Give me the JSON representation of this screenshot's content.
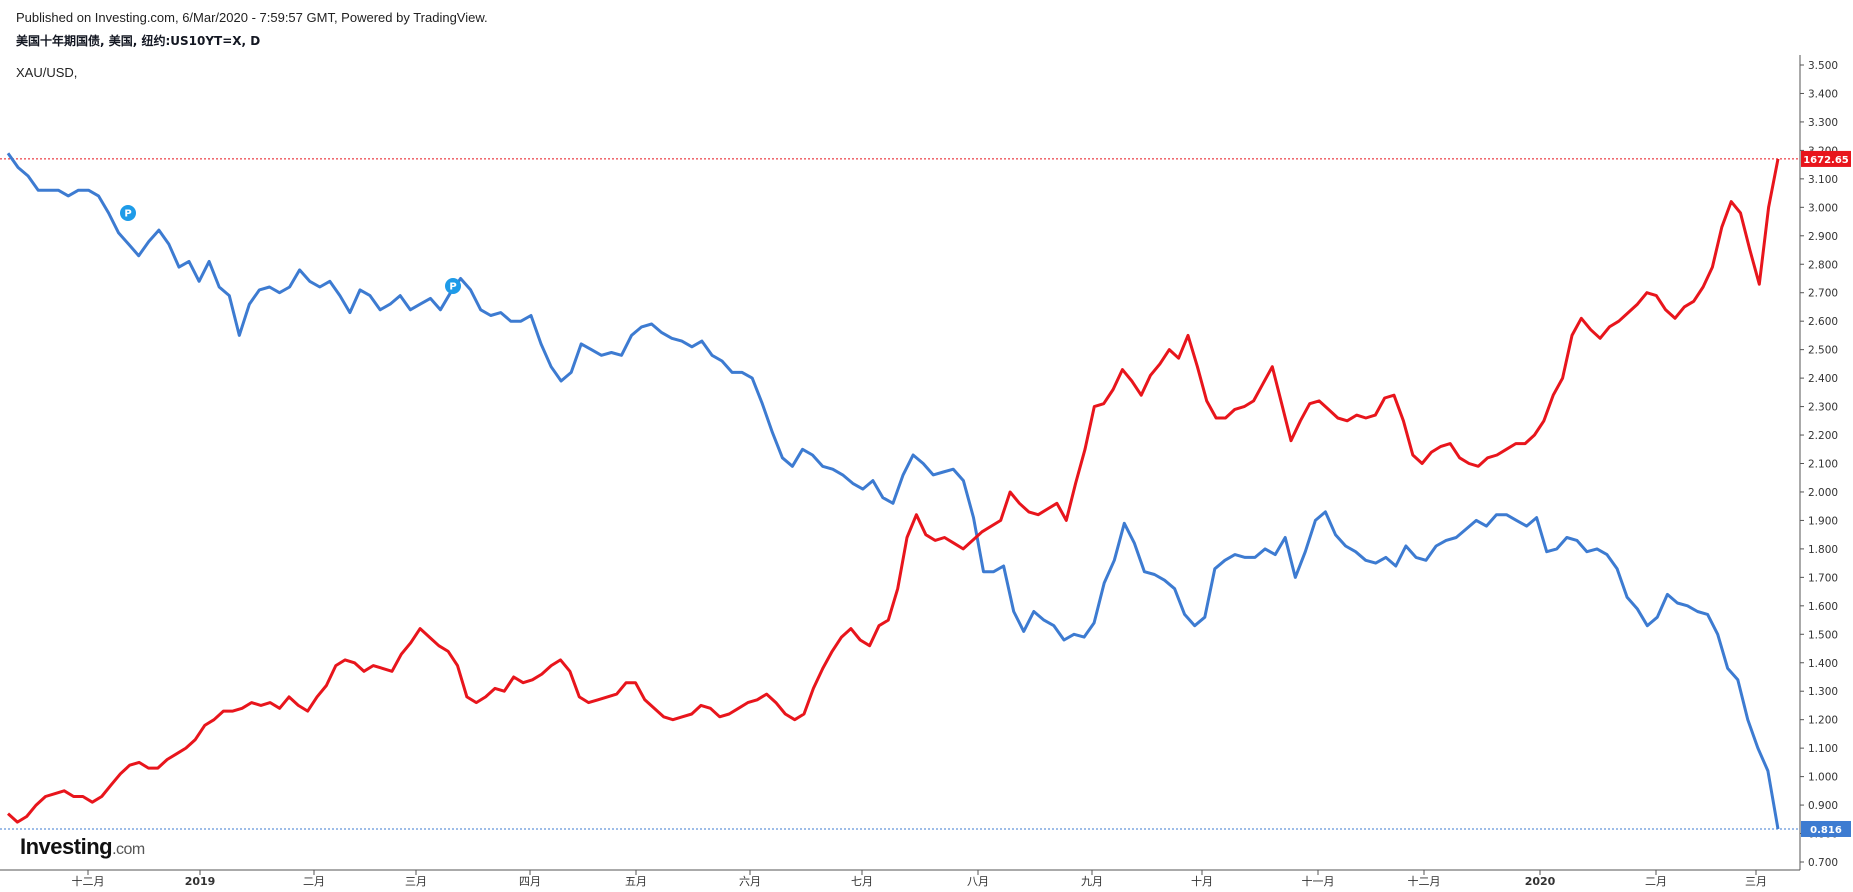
{
  "header": {
    "published": "Published on Investing.com, 6/Mar/2020 - 7:59:57 GMT, Powered by TradingView.",
    "symbol": "美国十年期国债, 美国, 纽约:US10YT=X, D",
    "overlay": "XAU/USD,"
  },
  "logo": {
    "main": "Investing",
    "suffix": ".com"
  },
  "colors": {
    "us10y": "#3d7bd1",
    "gold": "#e8151c",
    "axis": "#555555"
  },
  "chart_data": {
    "type": "line",
    "yaxis": {
      "ticks": [
        "3.500",
        "3.400",
        "3.300",
        "3.200",
        "3.100",
        "3.000",
        "2.900",
        "2.800",
        "2.700",
        "2.600",
        "2.500",
        "2.400",
        "2.300",
        "2.200",
        "2.100",
        "2.000",
        "1.900",
        "1.800",
        "1.700",
        "1.600",
        "1.500",
        "1.400",
        "1.300",
        "1.200",
        "1.100",
        "1.000",
        "0.900",
        "0.800",
        "0.700"
      ],
      "ylim": [
        0.7,
        3.5
      ]
    },
    "xaxis": {
      "ticks": [
        {
          "label": "十二月",
          "year": false
        },
        {
          "label": "2019",
          "year": true
        },
        {
          "label": "二月",
          "year": false
        },
        {
          "label": "三月",
          "year": false
        },
        {
          "label": "四月",
          "year": false
        },
        {
          "label": "五月",
          "year": false
        },
        {
          "label": "六月",
          "year": false
        },
        {
          "label": "七月",
          "year": false
        },
        {
          "label": "八月",
          "year": false
        },
        {
          "label": "九月",
          "year": false
        },
        {
          "label": "十月",
          "year": false
        },
        {
          "label": "十一月",
          "year": false
        },
        {
          "label": "十二月",
          "year": false
        },
        {
          "label": "2020",
          "year": true
        },
        {
          "label": "二月",
          "year": false
        },
        {
          "label": "三月",
          "year": false
        }
      ]
    },
    "price_labels": {
      "gold_last": "1672.65",
      "us10y_last": "0.816"
    },
    "annotation_marker": "P",
    "series": [
      {
        "key": "us10y",
        "values": [
          3.19,
          3.14,
          3.11,
          3.06,
          3.06,
          3.06,
          3.04,
          3.06,
          3.06,
          3.04,
          2.98,
          2.91,
          2.87,
          2.83,
          2.88,
          2.92,
          2.87,
          2.79,
          2.81,
          2.74,
          2.81,
          2.72,
          2.69,
          2.55,
          2.66,
          2.71,
          2.72,
          2.7,
          2.72,
          2.78,
          2.74,
          2.72,
          2.74,
          2.69,
          2.63,
          2.71,
          2.69,
          2.64,
          2.66,
          2.69,
          2.64,
          2.66,
          2.68,
          2.64,
          2.7,
          2.75,
          2.71,
          2.64,
          2.62,
          2.63,
          2.6,
          2.6,
          2.62,
          2.52,
          2.44,
          2.39,
          2.42,
          2.52,
          2.5,
          2.48,
          2.49,
          2.48,
          2.55,
          2.58,
          2.59,
          2.56,
          2.54,
          2.53,
          2.51,
          2.53,
          2.48,
          2.46,
          2.42,
          2.42,
          2.4,
          2.31,
          2.21,
          2.12,
          2.09,
          2.15,
          2.13,
          2.09,
          2.08,
          2.06,
          2.03,
          2.01,
          2.04,
          1.98,
          1.96,
          2.06,
          2.13,
          2.1,
          2.06,
          2.07,
          2.08,
          2.04,
          1.91,
          1.72,
          1.72,
          1.74,
          1.58,
          1.51,
          1.58,
          1.55,
          1.53,
          1.48,
          1.5,
          1.49,
          1.54,
          1.68,
          1.76,
          1.89,
          1.82,
          1.72,
          1.71,
          1.69,
          1.66,
          1.57,
          1.53,
          1.56,
          1.73,
          1.76,
          1.78,
          1.77,
          1.77,
          1.8,
          1.78,
          1.84,
          1.7,
          1.79,
          1.9,
          1.93,
          1.85,
          1.81,
          1.79,
          1.76,
          1.75,
          1.77,
          1.74,
          1.81,
          1.77,
          1.76,
          1.81,
          1.83,
          1.84,
          1.87,
          1.9,
          1.88,
          1.92,
          1.92,
          1.9,
          1.88,
          1.91,
          1.79,
          1.8,
          1.84,
          1.83,
          1.79,
          1.8,
          1.78,
          1.73,
          1.63,
          1.59,
          1.53,
          1.56,
          1.64,
          1.61,
          1.6,
          1.58,
          1.57,
          1.5,
          1.38,
          1.34,
          1.2,
          1.1,
          1.02,
          0.816
        ]
      },
      {
        "key": "gold",
        "values": [
          0.87,
          0.84,
          0.86,
          0.9,
          0.93,
          0.94,
          0.95,
          0.93,
          0.93,
          0.91,
          0.93,
          0.97,
          1.01,
          1.04,
          1.05,
          1.03,
          1.03,
          1.06,
          1.08,
          1.1,
          1.13,
          1.18,
          1.2,
          1.23,
          1.23,
          1.24,
          1.26,
          1.25,
          1.26,
          1.24,
          1.28,
          1.25,
          1.23,
          1.28,
          1.32,
          1.39,
          1.41,
          1.4,
          1.37,
          1.39,
          1.38,
          1.37,
          1.43,
          1.47,
          1.52,
          1.49,
          1.46,
          1.44,
          1.39,
          1.28,
          1.26,
          1.28,
          1.31,
          1.3,
          1.35,
          1.33,
          1.34,
          1.36,
          1.39,
          1.41,
          1.37,
          1.28,
          1.26,
          1.27,
          1.28,
          1.29,
          1.33,
          1.33,
          1.27,
          1.24,
          1.21,
          1.2,
          1.21,
          1.22,
          1.25,
          1.24,
          1.21,
          1.22,
          1.24,
          1.26,
          1.27,
          1.29,
          1.26,
          1.22,
          1.2,
          1.22,
          1.31,
          1.38,
          1.44,
          1.49,
          1.52,
          1.48,
          1.46,
          1.53,
          1.55,
          1.66,
          1.84,
          1.92,
          1.85,
          1.83,
          1.84,
          1.82,
          1.8,
          1.83,
          1.86,
          1.88,
          1.9,
          2.0,
          1.96,
          1.93,
          1.92,
          1.94,
          1.96,
          1.9,
          2.03,
          2.15,
          2.3,
          2.31,
          2.36,
          2.43,
          2.39,
          2.34,
          2.41,
          2.45,
          2.5,
          2.47,
          2.55,
          2.44,
          2.32,
          2.26,
          2.26,
          2.29,
          2.3,
          2.32,
          2.38,
          2.44,
          2.31,
          2.18,
          2.25,
          2.31,
          2.32,
          2.29,
          2.26,
          2.25,
          2.27,
          2.26,
          2.27,
          2.33,
          2.34,
          2.25,
          2.13,
          2.1,
          2.14,
          2.16,
          2.17,
          2.12,
          2.1,
          2.09,
          2.12,
          2.13,
          2.15,
          2.17,
          2.17,
          2.2,
          2.25,
          2.34,
          2.4,
          2.55,
          2.61,
          2.57,
          2.54,
          2.58,
          2.6,
          2.63,
          2.66,
          2.7,
          2.69,
          2.64,
          2.61,
          2.65,
          2.67,
          2.72,
          2.79,
          2.93,
          3.02,
          2.98,
          2.85,
          2.73,
          3.0,
          3.17
        ]
      }
    ]
  }
}
